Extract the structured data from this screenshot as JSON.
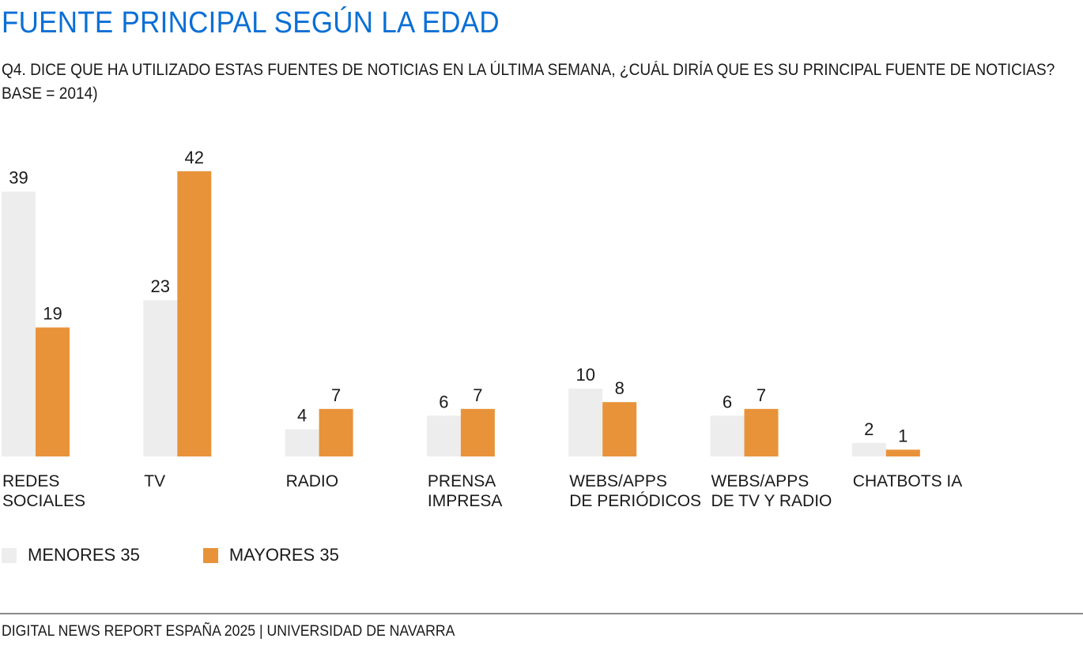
{
  "header": {
    "title": "FUENTE PRINCIPAL SEGÚN LA EDAD",
    "subtitle_line1": "Q4. DICE QUE HA UTILIZADO ESTAS FUENTES DE NOTICIAS EN LA ÚLTIMA SEMANA, ¿CUÁL DIRÍA QUE ES SU PRINCIPAL FUENTE DE NOTICIAS?",
    "subtitle_line2": "BASE = 2014)"
  },
  "chart_data": {
    "type": "bar",
    "categories": [
      [
        "REDES",
        "SOCIALES"
      ],
      [
        "TV"
      ],
      [
        "RADIO"
      ],
      [
        "PRENSA",
        "IMPRESA"
      ],
      [
        "WEBS/APPS",
        "DE PERIÓDICOS"
      ],
      [
        "WEBS/APPS",
        "DE TV Y RADIO"
      ],
      [
        "CHATBOTS IA"
      ]
    ],
    "series": [
      {
        "name": "MENORES 35",
        "color": "#ededed",
        "values": [
          39,
          23,
          4,
          6,
          10,
          6,
          2
        ]
      },
      {
        "name": "MAYORES 35",
        "color": "#e8933a",
        "values": [
          19,
          42,
          7,
          7,
          8,
          7,
          1
        ]
      }
    ],
    "ylim": [
      0,
      42
    ],
    "grid": false,
    "legend_position": "bottom-left"
  },
  "legend": {
    "items": [
      {
        "label": "MENORES 35",
        "color": "#ededed"
      },
      {
        "label": "MAYORES 35",
        "color": "#e8933a"
      }
    ]
  },
  "footer": {
    "text": "DIGITAL NEWS REPORT ESPAÑA 2025 | UNIVERSIDAD DE NAVARRA"
  }
}
